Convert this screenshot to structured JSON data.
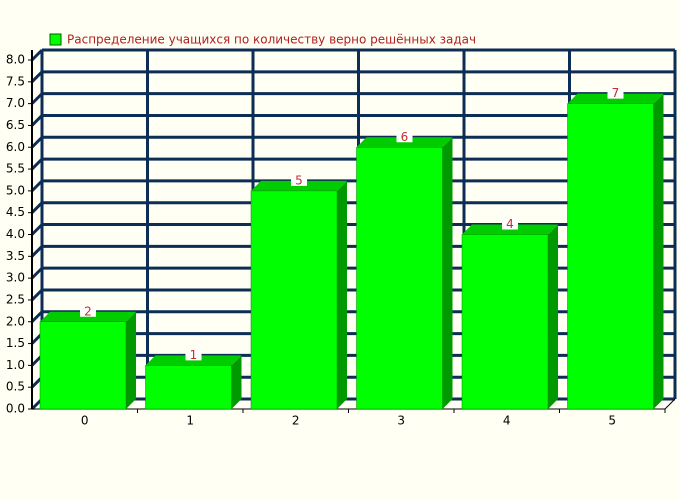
{
  "chart_data": {
    "type": "bar3d",
    "categories": [
      "0",
      "1",
      "2",
      "3",
      "4",
      "5"
    ],
    "series": [
      {
        "name": "Распределение учащихся по количеству верно решённых задач",
        "color": "#00ff00",
        "values": [
          2,
          1,
          5,
          6,
          4,
          7
        ]
      }
    ],
    "ylim": [
      0,
      8
    ],
    "yticks": [
      {
        "value": 0,
        "label": "0.0"
      },
      0.5,
      {
        "value": 1,
        "label": "1.0"
      },
      1.5,
      {
        "value": 2,
        "label": "2.0"
      },
      2.5,
      {
        "value": 3,
        "label": "3.0"
      },
      3.5,
      {
        "value": 4,
        "label": "4.0"
      },
      4.5,
      {
        "value": 5,
        "label": "5.0"
      },
      5.5,
      {
        "value": 6,
        "label": "6.0"
      },
      6.5,
      {
        "value": 7,
        "label": "7.0"
      },
      7.5,
      {
        "value": 8,
        "label": "8.0"
      }
    ],
    "grid": true,
    "grid_color": "#0c2d55",
    "legend": "top-left"
  }
}
